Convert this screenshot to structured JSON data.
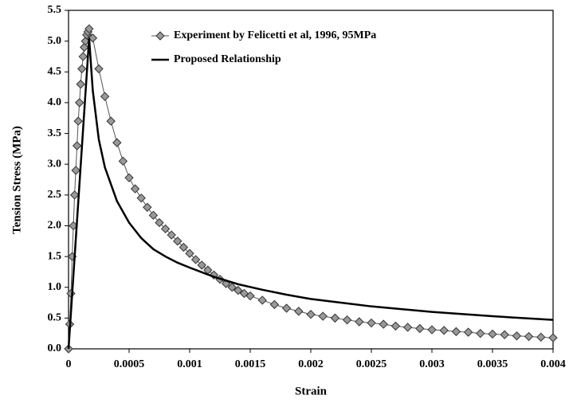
{
  "chart_data": {
    "type": "line",
    "xlabel": "Strain",
    "ylabel": "Tension Stress (MPa)",
    "xlim": [
      0,
      0.004
    ],
    "xticks": [
      0,
      0.0005,
      0.001,
      0.0015,
      0.002,
      0.0025,
      0.003,
      0.0035,
      0.004
    ],
    "ylim": [
      0,
      5.5
    ],
    "yticks": [
      {
        "value": 0,
        "label": "0.0"
      },
      0.5,
      {
        "value": 1,
        "label": "1.0"
      },
      1.5,
      {
        "value": 2,
        "label": "2.0"
      },
      2.5,
      {
        "value": 3,
        "label": "3.0"
      },
      3.5,
      {
        "value": 4,
        "label": "4.0"
      },
      4.5,
      {
        "value": 5,
        "label": "5.0"
      },
      5.5
    ],
    "legend": "top",
    "series": [
      {
        "name": "Experiment by Felicetti et al, 1996, 95MPa",
        "color": "#999999",
        "marker": "diamond",
        "x": [
          0,
          1e-05,
          2e-05,
          3e-05,
          4e-05,
          5e-05,
          6e-05,
          7e-05,
          8e-05,
          9e-05,
          0.0001,
          0.00011,
          0.00012,
          0.00013,
          0.00014,
          0.00015,
          0.00016,
          0.00017,
          0.0002,
          0.00025,
          0.0003,
          0.00035,
          0.0004,
          0.00045,
          0.0005,
          0.00055,
          0.0006,
          0.00065,
          0.0007,
          0.00075,
          0.0008,
          0.00085,
          0.0009,
          0.00095,
          0.001,
          0.00105,
          0.0011,
          0.00115,
          0.0012,
          0.00125,
          0.0013,
          0.00135,
          0.0014,
          0.00145,
          0.0015,
          0.0016,
          0.0017,
          0.0018,
          0.0019,
          0.002,
          0.0021,
          0.0022,
          0.0023,
          0.0024,
          0.0025,
          0.0026,
          0.0027,
          0.0028,
          0.0029,
          0.003,
          0.0031,
          0.0032,
          0.0033,
          0.0034,
          0.0035,
          0.0036,
          0.0037,
          0.0038,
          0.0039,
          0.004
        ],
        "values": [
          0,
          0.4,
          0.9,
          1.5,
          2.0,
          2.5,
          2.9,
          3.3,
          3.7,
          4.0,
          4.3,
          4.55,
          4.75,
          4.9,
          5.0,
          5.1,
          5.15,
          5.2,
          5.05,
          4.55,
          4.1,
          3.7,
          3.35,
          3.05,
          2.78,
          2.6,
          2.45,
          2.3,
          2.17,
          2.05,
          1.95,
          1.85,
          1.75,
          1.65,
          1.55,
          1.45,
          1.36,
          1.28,
          1.2,
          1.13,
          1.06,
          1.0,
          0.95,
          0.9,
          0.86,
          0.79,
          0.72,
          0.66,
          0.61,
          0.56,
          0.53,
          0.5,
          0.47,
          0.44,
          0.42,
          0.4,
          0.37,
          0.35,
          0.33,
          0.31,
          0.3,
          0.28,
          0.27,
          0.25,
          0.24,
          0.23,
          0.21,
          0.2,
          0.19,
          0.18
        ]
      },
      {
        "name": "Proposed Relationship",
        "color": "#000000",
        "x": [
          0,
          0.00017,
          0.0002,
          0.00025,
          0.0003,
          0.0004,
          0.0005,
          0.0006,
          0.0007,
          0.0008,
          0.0009,
          0.001,
          0.0012,
          0.0014,
          0.0016,
          0.0018,
          0.002,
          0.0025,
          0.003,
          0.0035,
          0.004
        ],
        "values": [
          0,
          5.05,
          4.2,
          3.4,
          2.95,
          2.4,
          2.05,
          1.8,
          1.62,
          1.5,
          1.4,
          1.32,
          1.17,
          1.05,
          0.96,
          0.88,
          0.81,
          0.69,
          0.6,
          0.53,
          0.47
        ]
      }
    ]
  }
}
